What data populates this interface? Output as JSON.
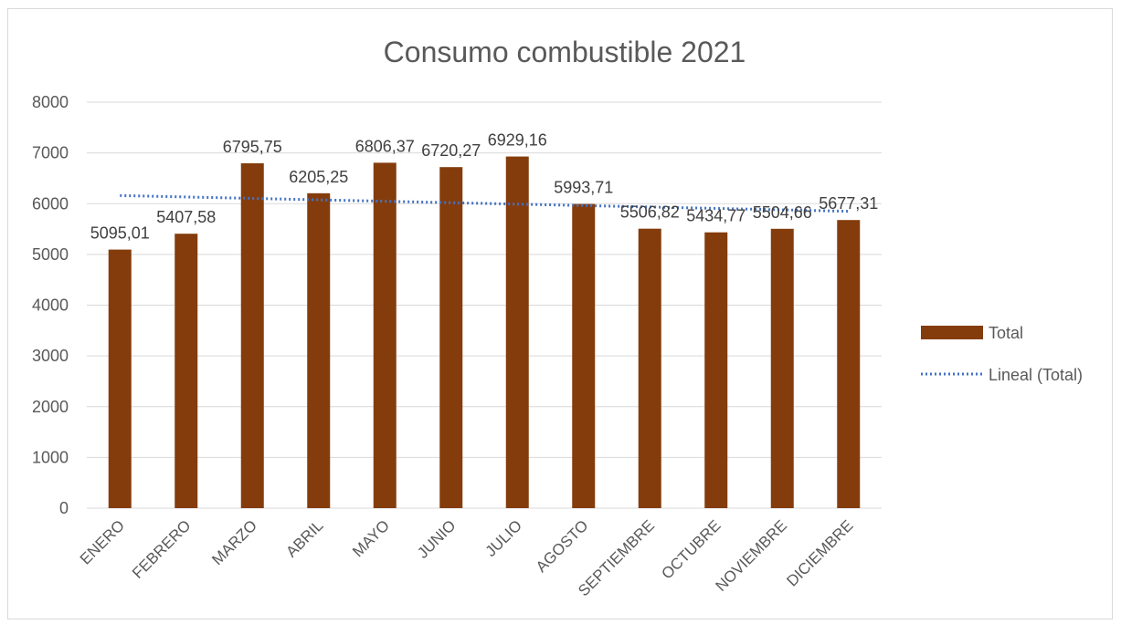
{
  "chart_data": {
    "type": "bar",
    "title": "Consumo combustible 2021",
    "categories": [
      "ENERO",
      "FEBRERO",
      "MARZO",
      "ABRIL",
      "MAYO",
      "JUNIO",
      "JULIO",
      "AGOSTO",
      "SEPTIEMBRE",
      "OCTUBRE",
      "NOVIEMBRE",
      "DICIEMBRE"
    ],
    "series": [
      {
        "name": "Total",
        "values": [
          5095.01,
          5407.58,
          6795.75,
          6205.25,
          6806.37,
          6720.27,
          6929.16,
          5993.71,
          5506.82,
          5434.77,
          5504.66,
          5677.31
        ],
        "data_labels": [
          "5095,01",
          "5407,58",
          "6795,75",
          "6205,25",
          "6806,37",
          "6720,27",
          "6929,16",
          "5993,71",
          "5506,82",
          "5434,77",
          "5504,66",
          "5677,31"
        ],
        "color": "#843c0c"
      }
    ],
    "trendline": {
      "name": "Lineal (Total)",
      "type": "linear",
      "start": 6160,
      "end": 5850,
      "color": "#4472c4"
    },
    "ylim": [
      0,
      8000
    ],
    "yticks": [
      0,
      1000,
      2000,
      3000,
      4000,
      5000,
      6000,
      7000,
      8000
    ],
    "xlabel": "",
    "ylabel": "",
    "grid": true,
    "legend": "right"
  }
}
